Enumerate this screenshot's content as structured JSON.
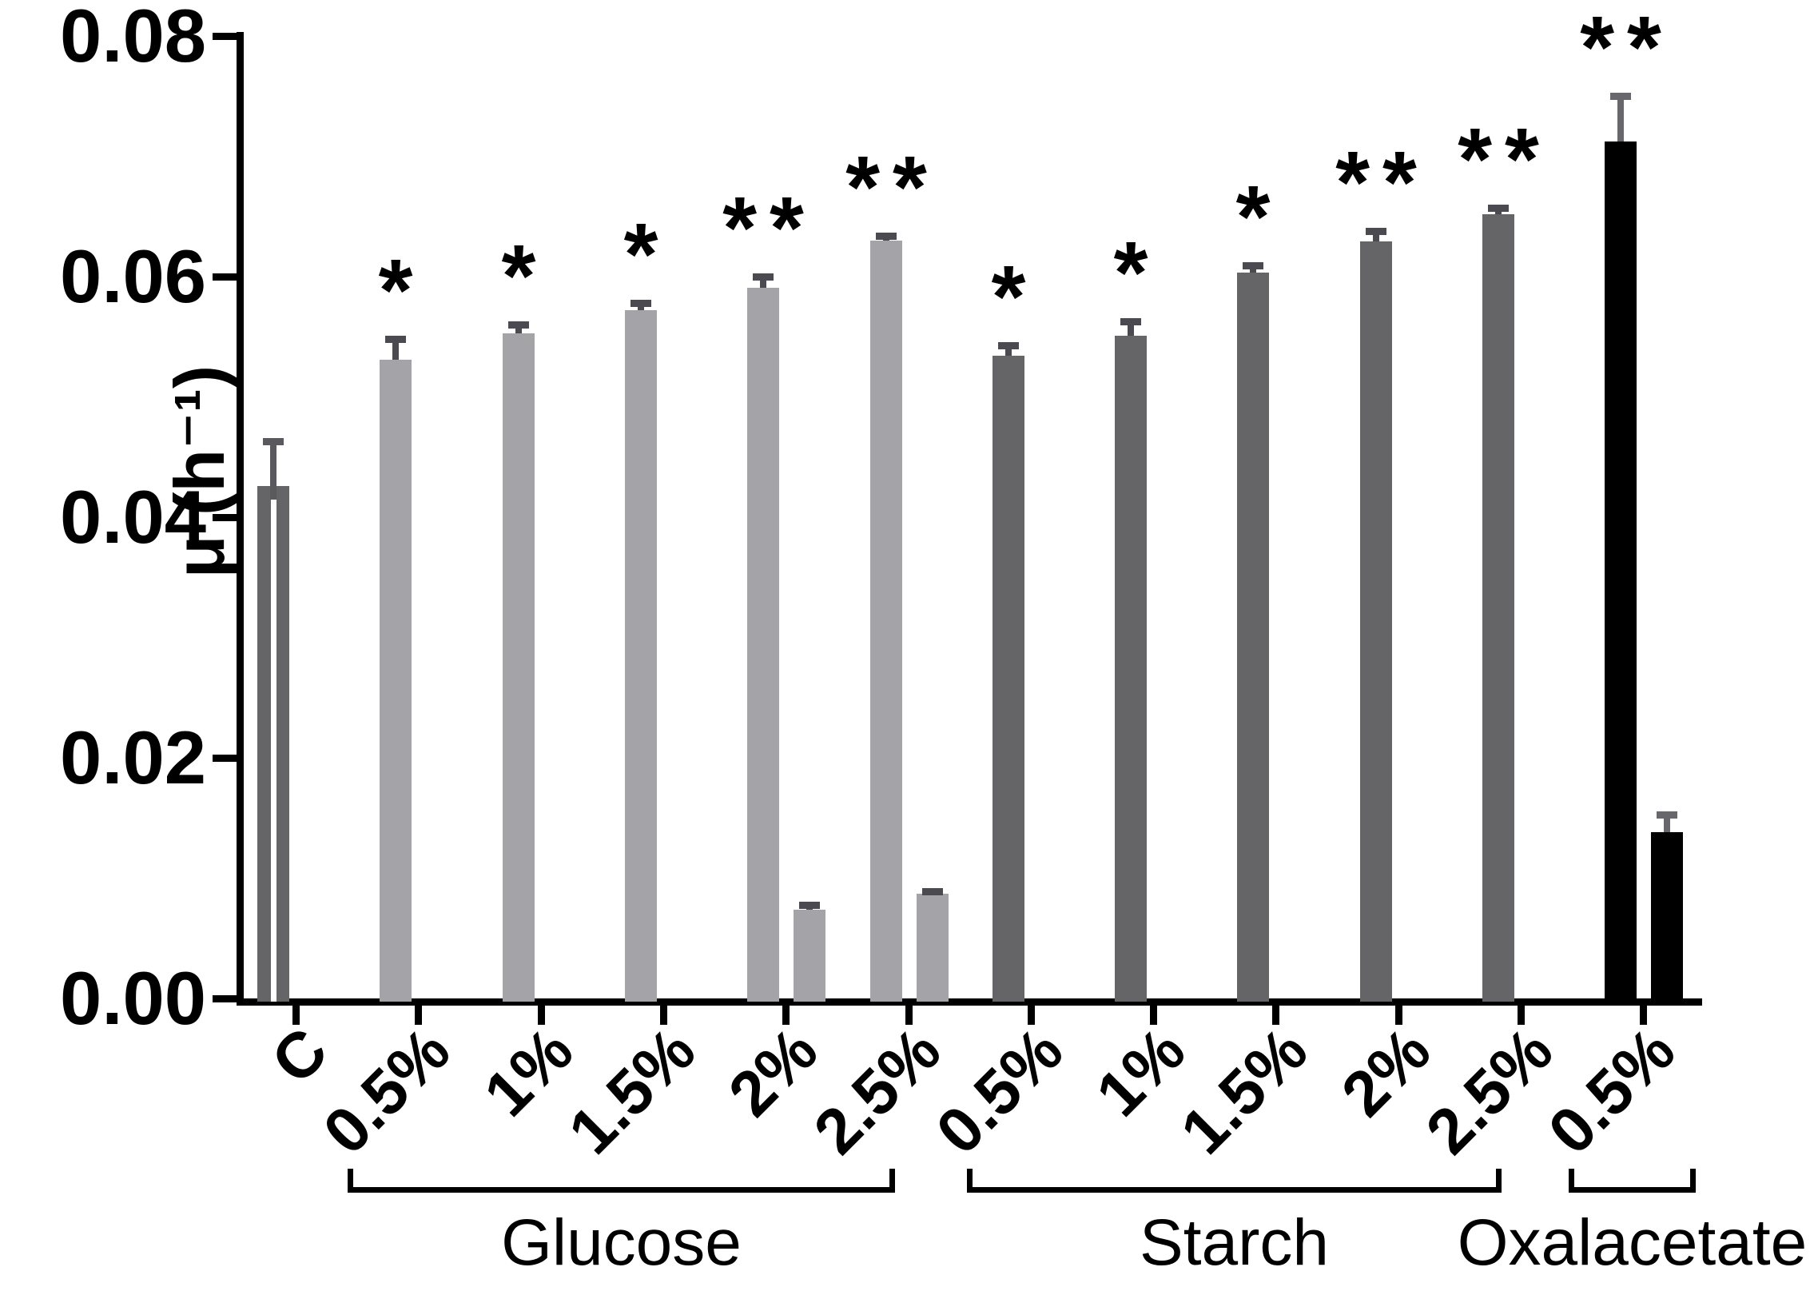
{
  "figure": {
    "background": "#ffffff"
  },
  "chart_data": {
    "type": "bar",
    "title": "",
    "ylabel": "μ (h⁻¹)",
    "xlabel": "",
    "ylim": [
      0,
      0.08
    ],
    "ytick_labels": [
      "0.00",
      "0.02",
      "0.04",
      "0.06",
      "0.08"
    ],
    "ytick_values": [
      0,
      0.02,
      0.04,
      0.06,
      0.08
    ],
    "grid": false,
    "legend": "none",
    "error_bars": "sd, upper only",
    "series_colors": {
      "control": "#656467",
      "glucose": "#a4a3a8",
      "starch": "#656467",
      "oxalacetate": "#000000"
    },
    "error_colors": {
      "control": "#5a595d",
      "glucose": "#4b4a50",
      "starch": "#4b4a50",
      "oxalacetate": "#68676c"
    },
    "significance_color": "#000000",
    "axis_color": "#000000",
    "categories": [
      {
        "label": "C",
        "series": "control",
        "value": 0.0426,
        "error": 0.0037,
        "significance": "",
        "center_gap": true
      },
      {
        "label": "0.5%",
        "series": "glucose",
        "value": 0.0531,
        "error": 0.0017,
        "significance": "*"
      },
      {
        "label": "1%",
        "series": "glucose",
        "value": 0.0553,
        "error": 0.0007,
        "significance": "*"
      },
      {
        "label": "1.5%",
        "series": "glucose",
        "value": 0.0572,
        "error": 0.0006,
        "significance": "*"
      },
      {
        "label": "2%",
        "series": "glucose",
        "value": 0.0591,
        "error": 0.0009,
        "significance": "**",
        "secondary": {
          "value": 0.0074,
          "error": 0.0004
        }
      },
      {
        "label": "2.5%",
        "series": "glucose",
        "value": 0.063,
        "error": 0.0004,
        "significance": "**",
        "secondary": {
          "value": 0.0087,
          "error": 0.0002
        }
      },
      {
        "label": "0.5%",
        "series": "starch",
        "value": 0.0534,
        "error": 0.0009,
        "significance": "*"
      },
      {
        "label": "1%",
        "series": "starch",
        "value": 0.0551,
        "error": 0.0012,
        "significance": "*"
      },
      {
        "label": "1.5%",
        "series": "starch",
        "value": 0.0603,
        "error": 0.0006,
        "significance": "*"
      },
      {
        "label": "2%",
        "series": "starch",
        "value": 0.0629,
        "error": 0.0009,
        "significance": "**"
      },
      {
        "label": "2.5%",
        "series": "starch",
        "value": 0.0652,
        "error": 0.0005,
        "significance": "**"
      },
      {
        "label": "0.5%",
        "series": "oxalacetate",
        "value": 0.0712,
        "error": 0.0038,
        "significance": "**",
        "secondary": {
          "value": 0.0138,
          "error": 0.0015
        }
      }
    ],
    "groups": [
      {
        "label": "Glucose",
        "category_indexes": [
          1,
          2,
          3,
          4,
          5
        ]
      },
      {
        "label": "Starch",
        "category_indexes": [
          6,
          7,
          8,
          9,
          10
        ]
      },
      {
        "label": "Oxalacetate",
        "category_indexes": [
          11
        ]
      }
    ]
  }
}
